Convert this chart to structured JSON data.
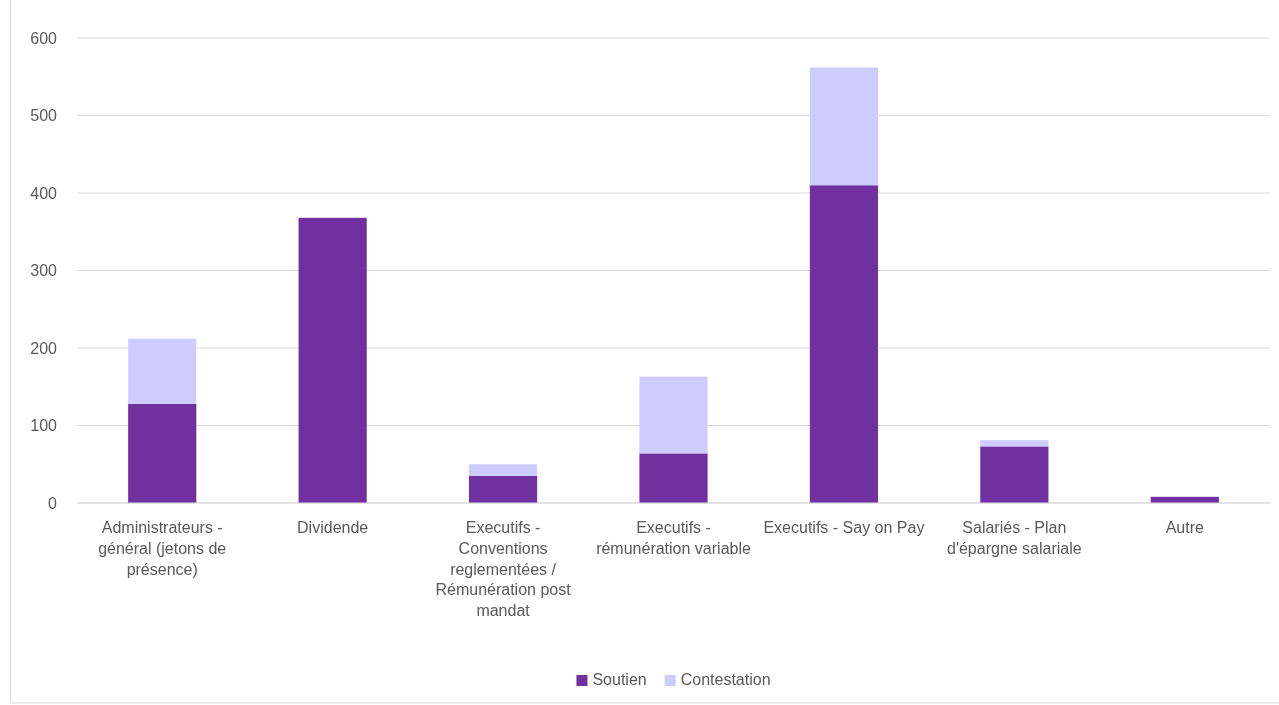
{
  "chart_data": {
    "type": "bar",
    "stacked": true,
    "categories": [
      "Administrateurs - général (jetons de présence)",
      "Dividende",
      "Executifs - Conventions reglementées / Rémunération post mandat",
      "Executifs - rémunération variable",
      "Executifs - Say on Pay",
      "Salariés - Plan d'épargne salariale",
      "Autre"
    ],
    "series": [
      {
        "name": "Soutien",
        "color": "#7030a0",
        "values": [
          128,
          368,
          35,
          64,
          410,
          73,
          8
        ]
      },
      {
        "name": "Contestation",
        "color": "#ccccff",
        "values": [
          84,
          0,
          15,
          99,
          152,
          8,
          0
        ]
      }
    ],
    "ylim": [
      0,
      600
    ],
    "yticks": [
      0,
      100,
      200,
      300,
      400,
      500,
      600
    ],
    "grid": "y",
    "legend": "bottom"
  }
}
